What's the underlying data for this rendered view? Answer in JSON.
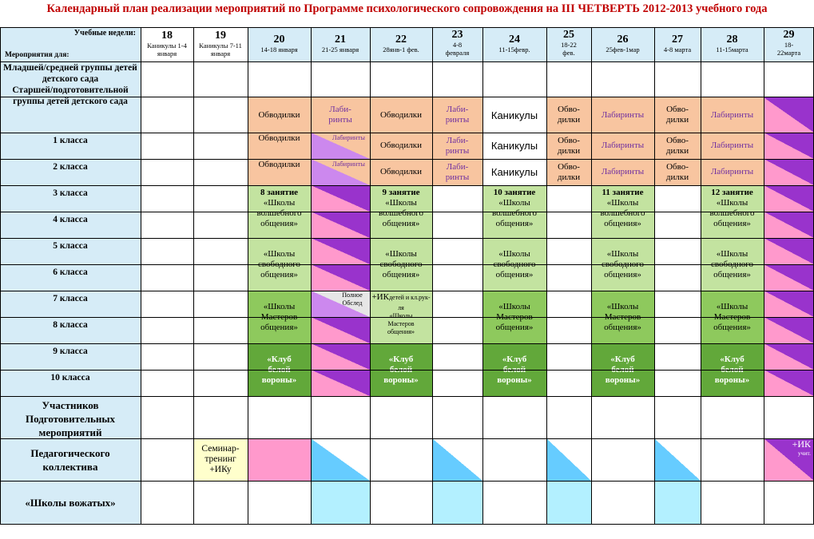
{
  "title": "Календарный план реализации мероприятий по Программе психологического сопровождения на III ЧЕТВЕРТЬ 2012-2013 учебного года",
  "header": {
    "weeks_label": "Учебные недели:",
    "events_label": "Мероприятия для:",
    "weeks": [
      {
        "num": "18",
        "dates": "Каникулы 1-4 января"
      },
      {
        "num": "19",
        "dates": "Каникулы 7-11 января"
      },
      {
        "num": "20",
        "dates": "14-18 января"
      },
      {
        "num": "21",
        "dates": "21-25 января"
      },
      {
        "num": "22",
        "dates": "28янв-1 фев."
      },
      {
        "num": "23",
        "dates": "4-8 февраля"
      },
      {
        "num": "24",
        "dates": "11-15февр."
      },
      {
        "num": "25",
        "dates": "18-22 фев."
      },
      {
        "num": "26",
        "dates": "25фев-1мар"
      },
      {
        "num": "27",
        "dates": "4-8 марта"
      },
      {
        "num": "28",
        "dates": "11-15марта"
      },
      {
        "num": "29",
        "dates": "18-22марта"
      }
    ]
  },
  "rows": {
    "kindergarten_younger": "Младшей/средней группы детей детского сада",
    "kindergarten_older": "Старшей/подготовительной группы детей детского сада",
    "class1": "1 класса",
    "class2": "2 класса",
    "class3": "3 класса",
    "class4": "4 класса",
    "class5": "5 класса",
    "class6": "6 класса",
    "class7": "7 класса",
    "class8": "8 класса",
    "class9": "9 класса",
    "class10": "10 класса",
    "participants": "Участников Подготовительных мероприятий",
    "teachers": "Педагогического коллектива",
    "counselors": "«Школы вожатых»"
  },
  "activities": {
    "obvodilki": "Обводилки",
    "labirinty": "Лабиринты",
    "labirinty_split": "Лаби-ринты",
    "obvodilki_split": "Обво-дилки",
    "kanikuly": "Каникулы",
    "lesson8": "8 занятие",
    "lesson9": "9 занятие",
    "lesson10": "10 занятие",
    "lesson11": "11 занятие",
    "lesson12": "12 занятие",
    "magic_school": "«Школы волшебного общения»",
    "free_school": "«Школы свободного общения»",
    "masters_school": "«Школы Мастеров общения»",
    "white_crow": "«Клуб белой вороны»",
    "full_exam": "Полное Обслед",
    "ik_plus": "+ИК",
    "ik_children": "детей и кл.рук-ля",
    "masters_small": "«Школы Мастеров общения»",
    "seminar": "Семинар-тренинг +ИКу",
    "ik_teachers": "+ИК",
    "ik_teachers_sub": "учит."
  },
  "colors": {
    "title": "#c00000",
    "header_blue": "#d6ecf7",
    "orange": "#f8c5a0",
    "light_green": "#c3e3a0",
    "mid_green": "#8ec95d",
    "dark_green": "#62a83a",
    "pink": "#ff99cc",
    "purple": "#9933cc",
    "cyan": "#b3f0ff"
  }
}
